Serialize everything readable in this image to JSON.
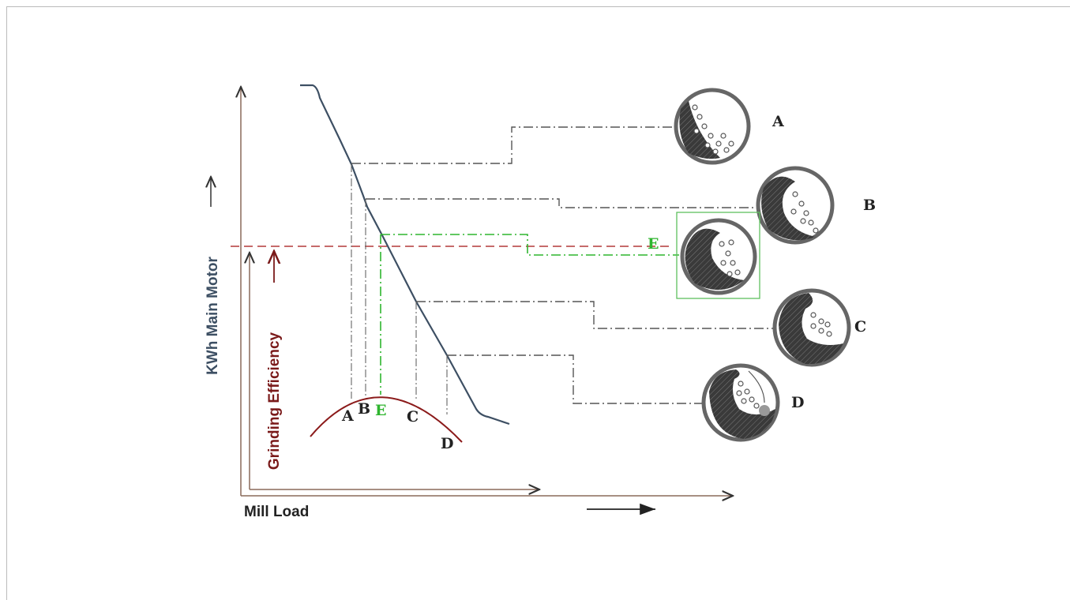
{
  "axes": {
    "y_label": "KWh Main Motor",
    "y2_label": "Grinding Efficiency",
    "x_label": "Mill Load"
  },
  "curve_points": [
    {
      "label": "A"
    },
    {
      "label": "B"
    },
    {
      "label": "E"
    },
    {
      "label": "C"
    },
    {
      "label": "D"
    }
  ],
  "mills": [
    {
      "label": "A"
    },
    {
      "label": "B"
    },
    {
      "label": "E"
    },
    {
      "label": "C"
    },
    {
      "label": "D"
    }
  ]
}
